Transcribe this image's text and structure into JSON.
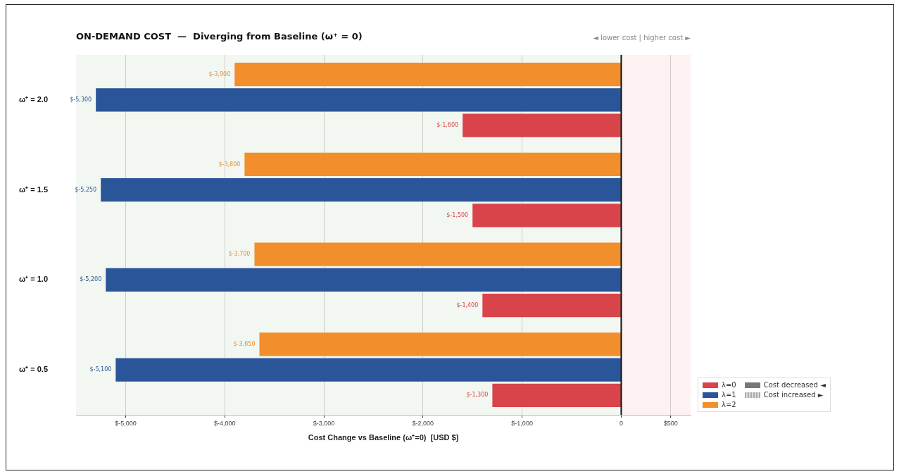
{
  "chart_data": {
    "type": "bar",
    "orientation": "horizontal",
    "title": "ON-DEMAND COST  —  Diverging from Baseline (ω⁺ = 0)",
    "xlabel": "Cost Change vs Baseline (ω⁺=0)  [USD $]",
    "categories": [
      "ω⁺ = 2.0",
      "ω⁺ = 1.5",
      "ω⁺ = 1.0",
      "ω⁺ = 0.5"
    ],
    "series": [
      {
        "name": "λ=2",
        "color": "#f28e2b",
        "values": [
          -3900,
          -3800,
          -3700,
          -3650
        ],
        "value_labels": [
          "$-3,900",
          "$-3,800",
          "$-3,700",
          "$-3,650"
        ]
      },
      {
        "name": "λ=1",
        "color": "#2a5599",
        "values": [
          -5300,
          -5250,
          -5200,
          -5100
        ],
        "value_labels": [
          "$-5,300",
          "$-5,250",
          "$-5,200",
          "$-5,100"
        ]
      },
      {
        "name": "λ=0",
        "color": "#d9434a",
        "values": [
          -1600,
          -1500,
          -1400,
          -1300
        ],
        "value_labels": [
          "$-1,600",
          "$-1,500",
          "$-1,400",
          "$-1,300"
        ]
      }
    ],
    "xlim": [
      -5500,
      700
    ],
    "xticks": [
      {
        "value": -5000,
        "label": "$-5,000"
      },
      {
        "value": -4000,
        "label": "$-4,000"
      },
      {
        "value": -3000,
        "label": "$-3,000"
      },
      {
        "value": -2000,
        "label": "$-2,000"
      },
      {
        "value": -1000,
        "label": "$-1,000"
      },
      0,
      {
        "value": 500,
        "label": "$500"
      }
    ],
    "ref_lines": [
      {
        "axis": "x",
        "value": 0,
        "color": "#111111"
      }
    ],
    "bands": [
      {
        "axis": "x",
        "from": -5500,
        "to": 0,
        "color": "#f2f7f1"
      },
      {
        "axis": "x",
        "from": 0,
        "to": 700,
        "color": "#fdf2f1"
      }
    ],
    "annotations": [
      "◄ lower cost  |  higher cost ►",
      "Cost decreased ◄",
      "Cost increased ►"
    ],
    "grid": "x",
    "legend": "bottom right"
  }
}
